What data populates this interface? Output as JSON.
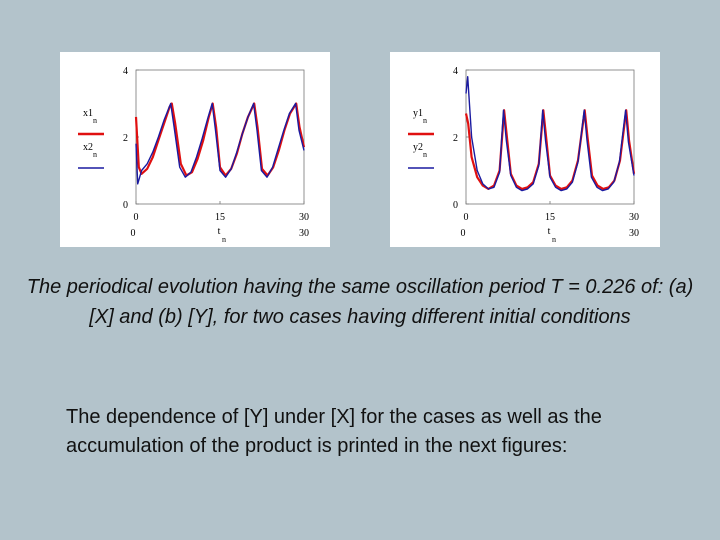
{
  "chart_data": [
    {
      "type": "line",
      "label": "(a) [X]",
      "xlabel": "t",
      "xlabel_sub": "n",
      "xlim": [
        0,
        30
      ],
      "ylim": [
        0,
        4
      ],
      "xticks": [
        "0",
        "15",
        "30"
      ],
      "xticks_second_row": [
        "0",
        "",
        "30"
      ],
      "yticks": [
        "4",
        "2",
        "0"
      ],
      "period_samples": 7.5,
      "series": [
        {
          "name": "x1",
          "name_sub": "n",
          "color": "#e01010",
          "peaks_t": [
            6.4,
            13.7,
            21.1,
            28.6
          ],
          "x": [
            0,
            0.5,
            1,
            2,
            3,
            4,
            5,
            6,
            6.4,
            7,
            8,
            9,
            10,
            11,
            12,
            13,
            13.7,
            14.3,
            15,
            16,
            17,
            18,
            19,
            20,
            21.1,
            21.7,
            22.5,
            23.5,
            24.5,
            25.5,
            26.5,
            27.5,
            28.6,
            29.2,
            30
          ],
          "values": [
            2.6,
            1.1,
            0.9,
            1.05,
            1.4,
            1.9,
            2.4,
            2.9,
            3.0,
            2.4,
            1.2,
            0.85,
            0.95,
            1.35,
            1.9,
            2.6,
            3.0,
            2.3,
            1.1,
            0.85,
            1.05,
            1.5,
            2.1,
            2.6,
            3.0,
            2.3,
            1.05,
            0.85,
            1.1,
            1.6,
            2.2,
            2.7,
            3.0,
            2.3,
            1.7
          ]
        },
        {
          "name": "x2",
          "name_sub": "n",
          "color": "#1a1aa0",
          "peaks_t": [
            6.2,
            13.6,
            21.0,
            28.5
          ],
          "x": [
            0,
            0.3,
            1,
            2,
            3,
            4,
            5,
            6.2,
            6.8,
            7.8,
            8.8,
            9.8,
            10.8,
            11.8,
            12.8,
            13.6,
            14.2,
            15,
            16,
            17,
            18,
            19,
            20,
            21.0,
            21.6,
            22.4,
            23.4,
            24.4,
            25.4,
            26.4,
            27.4,
            28.5,
            29.1,
            30
          ],
          "values": [
            1.8,
            0.6,
            1.0,
            1.2,
            1.55,
            2.0,
            2.5,
            3.0,
            2.3,
            1.1,
            0.8,
            0.95,
            1.4,
            1.95,
            2.55,
            3.0,
            2.2,
            1.0,
            0.8,
            1.05,
            1.55,
            2.1,
            2.6,
            3.0,
            2.2,
            1.0,
            0.8,
            1.1,
            1.65,
            2.2,
            2.7,
            3.0,
            2.2,
            1.6
          ]
        }
      ]
    },
    {
      "type": "line",
      "label": "(b) [Y]",
      "xlabel": "t",
      "xlabel_sub": "n",
      "xlim": [
        0,
        30
      ],
      "ylim": [
        0,
        4
      ],
      "xticks": [
        "0",
        "15",
        "30"
      ],
      "xticks_second_row": [
        "0",
        "",
        "30"
      ],
      "yticks": [
        "4",
        "2",
        "0"
      ],
      "series": [
        {
          "name": "y1",
          "name_sub": "n",
          "color": "#e01010",
          "x": [
            0,
            0.4,
            1,
            2,
            3,
            4,
            5,
            6,
            6.8,
            7.3,
            8,
            9,
            10,
            11,
            12,
            13,
            13.8,
            14.3,
            15,
            16,
            17,
            18,
            19,
            20,
            21.2,
            21.7,
            22.5,
            23.5,
            24.5,
            25.5,
            26.5,
            27.5,
            28.6,
            29.1,
            30
          ],
          "values": [
            2.7,
            2.4,
            1.4,
            0.8,
            0.55,
            0.45,
            0.55,
            1.0,
            2.8,
            2.0,
            0.9,
            0.55,
            0.45,
            0.5,
            0.65,
            1.2,
            2.8,
            2.0,
            0.85,
            0.55,
            0.45,
            0.5,
            0.7,
            1.3,
            2.8,
            2.0,
            0.85,
            0.55,
            0.45,
            0.5,
            0.7,
            1.3,
            2.8,
            1.9,
            0.9
          ]
        },
        {
          "name": "y2",
          "name_sub": "n",
          "color": "#1a1aa0",
          "x": [
            0,
            0.3,
            1,
            2,
            3,
            4,
            5,
            6,
            6.7,
            7.2,
            8,
            9,
            10,
            11,
            12,
            13,
            13.7,
            14.2,
            15,
            16,
            17,
            18,
            19,
            20,
            21.1,
            21.6,
            22.4,
            23.4,
            24.4,
            25.4,
            26.4,
            27.4,
            28.5,
            29.0,
            30
          ],
          "values": [
            3.3,
            3.8,
            2.0,
            1.0,
            0.6,
            0.45,
            0.5,
            0.95,
            2.8,
            1.9,
            0.85,
            0.5,
            0.4,
            0.45,
            0.6,
            1.15,
            2.8,
            1.9,
            0.8,
            0.5,
            0.4,
            0.45,
            0.65,
            1.25,
            2.8,
            1.9,
            0.8,
            0.5,
            0.4,
            0.45,
            0.65,
            1.25,
            2.8,
            1.85,
            0.85
          ]
        }
      ]
    }
  ],
  "caption": "The periodical evolution having the same oscillation period T = 0.226 of: (a) [X] and (b) [Y], for two cases having different initial conditions",
  "body": "The dependence of [Y] under [X] for the cases as well as the accumulation of the product is printed in the next figures:"
}
